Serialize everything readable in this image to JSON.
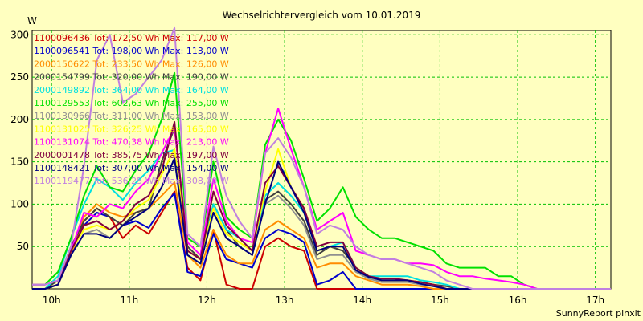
{
  "chart_data": {
    "type": "line",
    "title": "Wechselrichtervergleich vom 10.01.2019",
    "ylabel": "W",
    "footer": "SunnyReport pinxit",
    "ylim": [
      0,
      305
    ],
    "yticks": [
      50,
      100,
      150,
      200,
      250,
      300
    ],
    "xlim": [
      9.75,
      17.2
    ],
    "xticks": [
      {
        "value": 10,
        "label": "10h"
      },
      {
        "value": 11,
        "label": "11h"
      },
      {
        "value": 12,
        "label": "12h"
      },
      {
        "value": 13,
        "label": "13h"
      },
      {
        "value": 14,
        "label": "14h"
      },
      {
        "value": 15,
        "label": "15h"
      },
      {
        "value": 16,
        "label": "16h"
      },
      {
        "value": 17,
        "label": "17h"
      }
    ],
    "grid": true,
    "legend_position": "top-left",
    "x": [
      9.75,
      9.917,
      10.083,
      10.25,
      10.417,
      10.583,
      10.75,
      10.917,
      11.083,
      11.25,
      11.417,
      11.583,
      11.75,
      11.917,
      12.083,
      12.25,
      12.417,
      12.583,
      12.75,
      12.917,
      13.083,
      13.25,
      13.417,
      13.583,
      13.75,
      13.917,
      14.083,
      14.25,
      14.417,
      14.583,
      14.75,
      14.917,
      15.083,
      15.25,
      15.417,
      15.583,
      15.75,
      15.917,
      16.083,
      16.25,
      16.417,
      16.583,
      16.75,
      16.917,
      17.083,
      17.2
    ],
    "series": [
      {
        "name": "1100096436 Tot: 172,50 Wh Max: 117,00 W",
        "color": "#cc0000",
        "values": [
          0,
          0,
          5,
          40,
          80,
          95,
          85,
          60,
          75,
          65,
          90,
          115,
          25,
          10,
          70,
          5,
          0,
          0,
          50,
          60,
          50,
          45,
          0,
          0,
          0,
          0,
          0,
          0,
          0,
          0,
          0,
          0,
          0,
          0,
          0,
          0,
          0,
          0,
          0,
          0,
          0,
          0,
          0,
          0,
          0,
          0
        ]
      },
      {
        "name": "1100096541 Tot: 198,00 Wh Max: 113,00 W",
        "color": "#0000cc",
        "values": [
          0,
          0,
          5,
          45,
          75,
          90,
          85,
          75,
          80,
          72,
          95,
          113,
          20,
          15,
          65,
          35,
          30,
          25,
          60,
          70,
          65,
          55,
          5,
          10,
          20,
          0,
          0,
          0,
          0,
          0,
          0,
          0,
          0,
          0,
          0,
          0,
          0,
          0,
          0,
          0,
          0,
          0,
          0,
          0,
          0,
          0
        ]
      },
      {
        "name": "2000150622 Tot: 233,50 Wh Max: 126,00 W",
        "color": "#ff8c00",
        "values": [
          0,
          0,
          5,
          40,
          85,
          100,
          90,
          85,
          90,
          95,
          110,
          126,
          40,
          25,
          70,
          40,
          30,
          30,
          70,
          80,
          70,
          60,
          25,
          30,
          30,
          15,
          10,
          5,
          5,
          5,
          3,
          0,
          0,
          0,
          0,
          0,
          0,
          0,
          0,
          0,
          0,
          0,
          0,
          0,
          0,
          0
        ]
      },
      {
        "name": "2000154799 Tot: 320,00 Wh Max: 190,00 W",
        "color": "#404040",
        "values": [
          0,
          0,
          10,
          50,
          80,
          95,
          85,
          75,
          90,
          95,
          150,
          190,
          50,
          35,
          100,
          70,
          50,
          40,
          105,
          115,
          100,
          80,
          40,
          50,
          45,
          25,
          15,
          10,
          10,
          10,
          8,
          5,
          3,
          0,
          0,
          0,
          0,
          0,
          0,
          0,
          0,
          0,
          0,
          0,
          0,
          0
        ]
      },
      {
        "name": "2000149892 Tot: 364,00 Wh Max: 164,00 W",
        "color": "#00e0e0",
        "values": [
          0,
          0,
          15,
          60,
          100,
          130,
          120,
          105,
          125,
          140,
          160,
          164,
          40,
          30,
          100,
          70,
          60,
          45,
          110,
          125,
          110,
          90,
          45,
          50,
          55,
          25,
          15,
          15,
          15,
          15,
          10,
          8,
          5,
          0,
          0,
          0,
          0,
          0,
          0,
          0,
          0,
          0,
          0,
          0,
          0,
          0
        ]
      },
      {
        "name": "1100129553 Tot: 602,63 Wh Max: 255,00 W",
        "color": "#00e000",
        "values": [
          5,
          5,
          20,
          60,
          110,
          145,
          120,
          115,
          140,
          160,
          200,
          255,
          60,
          50,
          150,
          85,
          70,
          60,
          170,
          200,
          175,
          130,
          80,
          95,
          120,
          85,
          70,
          60,
          60,
          55,
          50,
          45,
          30,
          25,
          25,
          25,
          15,
          15,
          5,
          0,
          0,
          0,
          0,
          0,
          0,
          0
        ]
      },
      {
        "name": "1100130966 Tot: 311,00 Wh Max: 153,00 W",
        "color": "#909090",
        "values": [
          0,
          0,
          5,
          40,
          65,
          70,
          60,
          75,
          85,
          95,
          120,
          153,
          40,
          30,
          90,
          60,
          50,
          40,
          100,
          110,
          95,
          75,
          35,
          40,
          40,
          20,
          12,
          8,
          8,
          8,
          5,
          3,
          0,
          0,
          0,
          0,
          0,
          0,
          0,
          0,
          0,
          0,
          0,
          0,
          0,
          0
        ]
      },
      {
        "name": "1100131025 Tot: 326,25 Wh Max: 165,00 W",
        "color": "#ffff00",
        "values": [
          0,
          0,
          5,
          45,
          70,
          75,
          70,
          80,
          95,
          105,
          135,
          165,
          45,
          35,
          95,
          65,
          55,
          45,
          115,
          165,
          120,
          95,
          45,
          50,
          50,
          25,
          15,
          10,
          10,
          10,
          8,
          5,
          0,
          0,
          0,
          0,
          0,
          0,
          0,
          0,
          0,
          0,
          0,
          0,
          0,
          0
        ]
      },
      {
        "name": "1100131074 Tot: 470,38 Wh Max: 213,00 W",
        "color": "#ff00ff",
        "values": [
          5,
          5,
          10,
          45,
          90,
          85,
          100,
          95,
          115,
          130,
          160,
          190,
          55,
          40,
          130,
          80,
          60,
          55,
          160,
          213,
          165,
          120,
          70,
          80,
          90,
          45,
          40,
          35,
          35,
          30,
          30,
          28,
          20,
          15,
          15,
          12,
          10,
          8,
          5,
          0,
          0,
          0,
          0,
          0,
          0,
          0
        ]
      },
      {
        "name": "2000001478 Tot: 385,75 Wh Max: 197,00 W",
        "color": "#800040",
        "values": [
          0,
          0,
          5,
          45,
          75,
          80,
          70,
          80,
          100,
          110,
          140,
          197,
          45,
          35,
          115,
          75,
          60,
          45,
          125,
          145,
          120,
          95,
          50,
          55,
          55,
          25,
          15,
          12,
          12,
          10,
          8,
          5,
          0,
          0,
          0,
          0,
          0,
          0,
          0,
          0,
          0,
          0,
          0,
          0,
          0,
          0
        ]
      },
      {
        "name": "1100148421 Tot: 307,00 Wh Max: 154,00 W",
        "color": "#000080",
        "values": [
          0,
          0,
          5,
          40,
          65,
          65,
          60,
          75,
          85,
          95,
          120,
          154,
          40,
          30,
          90,
          60,
          50,
          40,
          100,
          150,
          120,
          90,
          45,
          50,
          50,
          22,
          14,
          10,
          10,
          10,
          6,
          3,
          0,
          0,
          0,
          0,
          0,
          0,
          0,
          0,
          0,
          0,
          0,
          0,
          0,
          0
        ]
      },
      {
        "name": "1100119477 Tot: 536,25 Wh Max: 308,00 W",
        "color": "#c080e0",
        "values": [
          5,
          5,
          10,
          50,
          145,
          270,
          300,
          220,
          230,
          250,
          270,
          308,
          65,
          50,
          168,
          110,
          80,
          60,
          160,
          178,
          155,
          120,
          65,
          75,
          70,
          50,
          40,
          35,
          35,
          30,
          25,
          20,
          10,
          5,
          0,
          0,
          0,
          0,
          0,
          0,
          0,
          0,
          0,
          0,
          0,
          0
        ]
      }
    ]
  }
}
